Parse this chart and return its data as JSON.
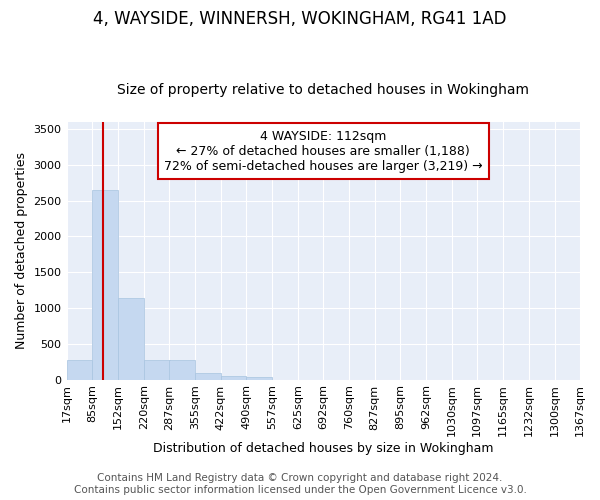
{
  "title": "4, WAYSIDE, WINNERSH, WOKINGHAM, RG41 1AD",
  "subtitle": "Size of property relative to detached houses in Wokingham",
  "xlabel": "Distribution of detached houses by size in Wokingham",
  "ylabel": "Number of detached properties",
  "annotation_line1": "4 WAYSIDE: 112sqm",
  "annotation_line2": "← 27% of detached houses are smaller (1,188)",
  "annotation_line3": "72% of semi-detached houses are larger (3,219) →",
  "bin_edges": [
    17,
    85,
    152,
    220,
    287,
    355,
    422,
    490,
    557,
    625,
    692,
    760,
    827,
    895,
    962,
    1030,
    1097,
    1165,
    1232,
    1300,
    1367
  ],
  "bar_heights": [
    270,
    2650,
    1140,
    280,
    280,
    90,
    50,
    40,
    0,
    0,
    0,
    0,
    0,
    0,
    0,
    0,
    0,
    0,
    0,
    0
  ],
  "bar_color": "#c5d8f0",
  "bar_edge_color": "#a8c4e0",
  "vline_color": "#cc0000",
  "vline_x": 112,
  "ylim": [
    0,
    3600
  ],
  "yticks": [
    0,
    500,
    1000,
    1500,
    2000,
    2500,
    3000,
    3500
  ],
  "background_color": "#e8eef8",
  "grid_color": "#ffffff",
  "annotation_box_color": "#ffffff",
  "annotation_box_edge_color": "#cc0000",
  "footer_line1": "Contains HM Land Registry data © Crown copyright and database right 2024.",
  "footer_line2": "Contains public sector information licensed under the Open Government Licence v3.0.",
  "title_fontsize": 12,
  "subtitle_fontsize": 10,
  "axis_label_fontsize": 9,
  "tick_fontsize": 8,
  "annotation_fontsize": 9,
  "footer_fontsize": 7.5
}
